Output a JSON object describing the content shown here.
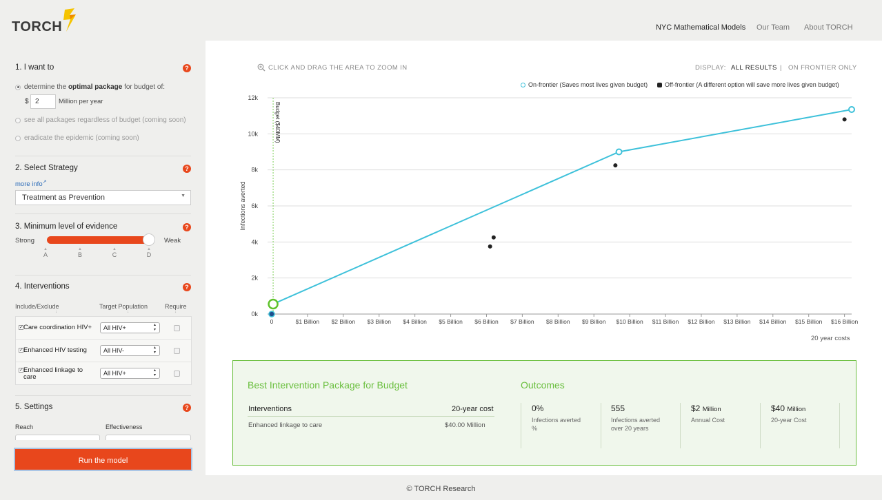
{
  "header": {
    "logo": "TORCH",
    "nav": [
      "NYC Mathematical Models",
      "Our Team",
      "About TORCH"
    ]
  },
  "sidebar": {
    "s1_title": "1. I want to",
    "opt1_pre": "determine the",
    "opt1_bold": "optimal package",
    "opt1_post": "for budget of:",
    "currency": "$",
    "budget_value": "2",
    "budget_unit": "Million per year",
    "opt2": "see all packages regardless of budget (coming soon)",
    "opt3": "eradicate the epidemic (coming soon)",
    "s2_title": "2. Select Strategy",
    "more_info": "more info",
    "strategy": "Treatment as Prevention",
    "s3_title": "3. Minimum level of evidence",
    "strong": "Strong",
    "weak": "Weak",
    "evidence_ticks": [
      "A",
      "B",
      "C",
      "D"
    ],
    "evidence_level": 1.0,
    "s4_title": "4. Interventions",
    "col_include": "Include/Exclude",
    "col_target": "Target Population",
    "col_require": "Require",
    "interventions": [
      {
        "label": "Care coordination HIV+",
        "target": "All HIV+",
        "checked": true
      },
      {
        "label": "Enhanced HIV testing",
        "target": "All HIV-",
        "checked": true
      },
      {
        "label_l1": "Enhanced linkage to",
        "label_l2": "care",
        "target": "All HIV+",
        "checked": true
      }
    ],
    "s5_title": "5. Settings",
    "reach": "Reach",
    "effectiveness": "Effectiveness",
    "run_button": "Run the model",
    "help": "?"
  },
  "main": {
    "zoom_hint": "CLICK AND DRAG THE AREA TO ZOOM IN",
    "display_label": "DISPLAY:",
    "display_all": "ALL RESULTS",
    "display_sep": "|",
    "display_frontier": "ON FRONTIER ONLY",
    "legend_on": "On-frontier (Saves most lives given budget)",
    "legend_off": "Off-frontier (A different option will save more lives given budget)",
    "cost_label": "20 year costs"
  },
  "chart_data": {
    "type": "scatter",
    "ylabel": "Infections averted",
    "xlabel": "20 year costs",
    "xlim": [
      0,
      16.2
    ],
    "ylim": [
      0,
      12000
    ],
    "yticks": [
      "0k",
      "2k",
      "4k",
      "6k",
      "8k",
      "10k",
      "12k"
    ],
    "xticks": [
      "0",
      "$1 Billion",
      "$2 Billion",
      "$3 Billion",
      "$4 Billion",
      "$5 Billion",
      "$6 Billion",
      "$7 Billion",
      "$8 Billion",
      "$9 Billion",
      "$10 Billion",
      "$11 Billion",
      "$12 Billion",
      "$13 Billion",
      "$14 Billion",
      "$15 Billion",
      "$16 Billion"
    ],
    "budget_line": {
      "x": 0.04,
      "label": "Budget ($40MM)"
    },
    "series": [
      {
        "name": "On-frontier (Saves most lives given budget)",
        "color": "#3ec1da",
        "points": [
          [
            0.04,
            555
          ],
          [
            9.7,
            9000
          ],
          [
            16.2,
            11350
          ]
        ]
      },
      {
        "name": "Off-frontier (A different option will save more lives given budget)",
        "color": "#222222",
        "points": [
          [
            0.0,
            0
          ],
          [
            6.2,
            4250
          ],
          [
            6.1,
            3750
          ],
          [
            9.6,
            8250
          ],
          [
            16.0,
            10800
          ]
        ]
      }
    ],
    "selected_point": [
      0.04,
      555
    ]
  },
  "results": {
    "title": "Best Intervention Package for Budget",
    "col_interventions": "Interventions",
    "col_cost": "20-year cost",
    "row_name": "Enhanced linkage to care",
    "row_cost": "$40.00 Million",
    "outcomes_title": "Outcomes",
    "outcomes": [
      {
        "value": "0%",
        "unit": "",
        "label1": "Infections averted",
        "label2": "%"
      },
      {
        "value": "555",
        "unit": "",
        "label1": "Infections averted",
        "label2": "over 20 years"
      },
      {
        "value": "$2",
        "unit": "Million",
        "label1": "Annual Cost",
        "label2": ""
      },
      {
        "value": "$40",
        "unit": "Million",
        "label1": "20-year Cost",
        "label2": ""
      }
    ]
  },
  "footer": "© TORCH Research",
  "colors": {
    "accent": "#e8471c",
    "frontier": "#3ec1da",
    "green": "#6abf3e"
  }
}
